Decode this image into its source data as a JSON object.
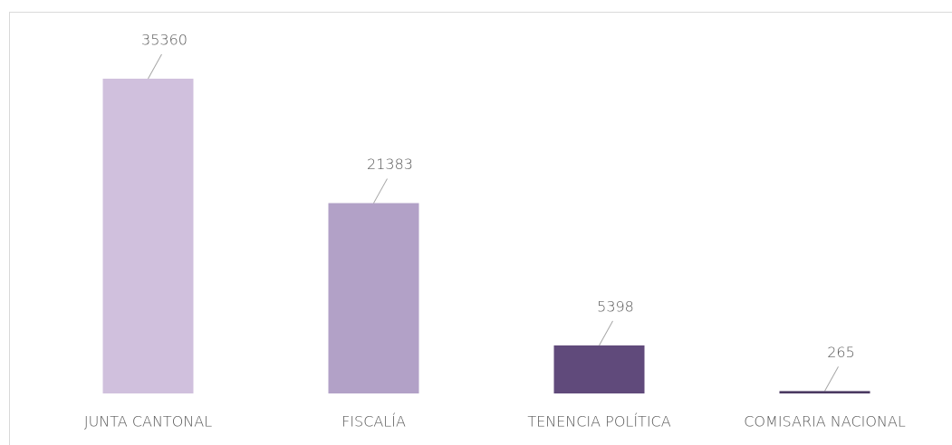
{
  "chart_data": {
    "type": "bar",
    "categories": [
      "JUNTA CANTONAL",
      "FISCALÍA",
      "TENENCIA POLÍTICA",
      "COMISARIA NACIONAL"
    ],
    "values": [
      35360,
      21383,
      5398,
      265
    ],
    "colors": [
      "#d0c0dd",
      "#b2a1c7",
      "#604a7b",
      "#4b3a62"
    ]
  }
}
